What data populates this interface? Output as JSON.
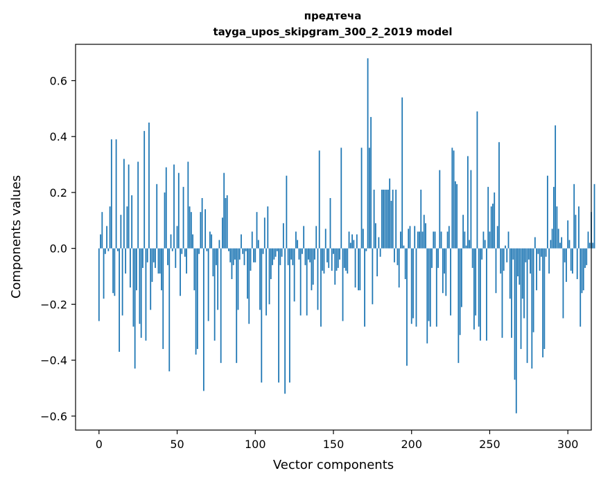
{
  "chart_data": {
    "type": "bar",
    "title": "предтеча",
    "subtitle": "tayga_upos_skipgram_300_2_2019 model",
    "xlabel": "Vector components",
    "ylabel": "Components values",
    "xlim": [
      -15,
      315
    ],
    "ylim": [
      -0.65,
      0.73
    ],
    "xticks": [
      0,
      50,
      100,
      150,
      200,
      250,
      300
    ],
    "xtick_labels": [
      "0",
      "50",
      "100",
      "150",
      "200",
      "250",
      "300"
    ],
    "yticks": [
      -0.6,
      -0.4,
      -0.2,
      0.0,
      0.2,
      0.4,
      0.6
    ],
    "ytick_labels": [
      "−0.6",
      "−0.4",
      "−0.2",
      "0.0",
      "0.2",
      "0.4",
      "0.6"
    ],
    "grid": false,
    "color": "#1f77b4",
    "x_start": 0,
    "values": [
      -0.26,
      0.05,
      0.13,
      -0.18,
      -0.02,
      0.08,
      -0.01,
      0.15,
      0.39,
      -0.16,
      -0.17,
      0.39,
      -0.01,
      -0.37,
      0.12,
      -0.24,
      0.32,
      -0.09,
      0.15,
      0.3,
      -0.14,
      0.19,
      -0.28,
      -0.43,
      -0.15,
      0.31,
      -0.27,
      -0.32,
      -0.07,
      0.42,
      -0.33,
      -0.05,
      0.45,
      -0.22,
      -0.12,
      -0.05,
      -0.07,
      0.23,
      -0.09,
      -0.09,
      -0.15,
      -0.36,
      0.2,
      0.29,
      -0.06,
      -0.44,
      0.05,
      -0.01,
      0.3,
      -0.07,
      0.08,
      0.27,
      -0.17,
      -0.02,
      0.22,
      -0.03,
      -0.09,
      0.31,
      0.15,
      0.13,
      0.05,
      -0.15,
      -0.38,
      -0.36,
      -0.02,
      0.13,
      0.18,
      -0.51,
      0.14,
      -0.01,
      -0.26,
      0.06,
      0.05,
      -0.1,
      -0.33,
      -0.06,
      -0.22,
      0.03,
      -0.41,
      0.11,
      0.27,
      0.18,
      0.19,
      -0.01,
      -0.05,
      -0.11,
      -0.06,
      -0.04,
      -0.41,
      -0.22,
      -0.04,
      0.05,
      -0.02,
      -0.06,
      -0.01,
      -0.18,
      -0.27,
      -0.08,
      0.06,
      -0.05,
      -0.05,
      0.13,
      0.03,
      -0.22,
      -0.48,
      -0.02,
      0.11,
      -0.24,
      0.15,
      -0.2,
      -0.11,
      -0.06,
      -0.04,
      -0.03,
      -0.01,
      -0.48,
      -0.06,
      -0.03,
      0.09,
      -0.52,
      0.26,
      -0.06,
      -0.48,
      -0.04,
      -0.06,
      -0.19,
      0.06,
      0.03,
      -0.04,
      -0.24,
      -0.02,
      0.08,
      -0.06,
      -0.24,
      -0.04,
      -0.05,
      -0.15,
      -0.13,
      -0.04,
      0.08,
      -0.22,
      0.35,
      -0.28,
      -0.08,
      -0.09,
      0.07,
      -0.05,
      -0.07,
      0.18,
      -0.08,
      -0.02,
      -0.13,
      -0.08,
      -0.07,
      -0.04,
      0.36,
      -0.26,
      -0.07,
      -0.08,
      -0.09,
      0.06,
      0.02,
      0.05,
      0.03,
      -0.14,
      0.05,
      -0.15,
      -0.15,
      0.36,
      0.07,
      -0.28,
      -0.01,
      0.68,
      0.36,
      0.47,
      -0.2,
      0.21,
      0.09,
      -0.1,
      0.04,
      -0.03,
      0.21,
      0.21,
      0.21,
      0.21,
      0.21,
      0.25,
      0.17,
      0.21,
      -0.05,
      0.21,
      -0.06,
      -0.14,
      0.06,
      0.54,
      0.01,
      -0.11,
      -0.42,
      0.07,
      0.08,
      -0.27,
      -0.25,
      0.08,
      -0.28,
      0.06,
      0.06,
      0.21,
      0.06,
      0.12,
      0.09,
      -0.34,
      -0.26,
      -0.28,
      -0.07,
      0.06,
      0.06,
      -0.28,
      -0.07,
      0.28,
      0.06,
      -0.16,
      -0.09,
      -0.17,
      0.06,
      0.08,
      -0.24,
      0.36,
      0.35,
      0.24,
      0.23,
      -0.41,
      -0.31,
      -0.21,
      0.12,
      0.06,
      0.01,
      0.33,
      0.03,
      0.28,
      -0.07,
      -0.29,
      -0.24,
      0.49,
      -0.28,
      -0.33,
      -0.04,
      0.06,
      0.03,
      -0.33,
      0.22,
      0.06,
      0.15,
      0.16,
      0.2,
      -0.16,
      0.08,
      0.38,
      -0.09,
      -0.32,
      -0.08,
      0.01,
      -0.05,
      0.06,
      -0.18,
      -0.32,
      -0.04,
      -0.47,
      -0.59,
      -0.1,
      -0.13,
      -0.36,
      -0.18,
      -0.25,
      -0.05,
      -0.41,
      -0.04,
      -0.09,
      -0.43,
      -0.3,
      0.04,
      -0.15,
      -0.02,
      -0.08,
      -0.03,
      -0.39,
      -0.36,
      -0.03,
      0.26,
      -0.09,
      0.03,
      0.07,
      0.22,
      0.44,
      0.15,
      0.07,
      0.02,
      0.04,
      -0.25,
      -0.05,
      -0.12,
      0.1,
      0.03,
      -0.08,
      -0.09,
      0.23,
      0.12,
      -0.11,
      0.15,
      -0.28,
      -0.16,
      -0.15,
      -0.07,
      -0.06,
      0.06,
      0.02,
      0.13,
      0.02,
      0.23
    ]
  }
}
